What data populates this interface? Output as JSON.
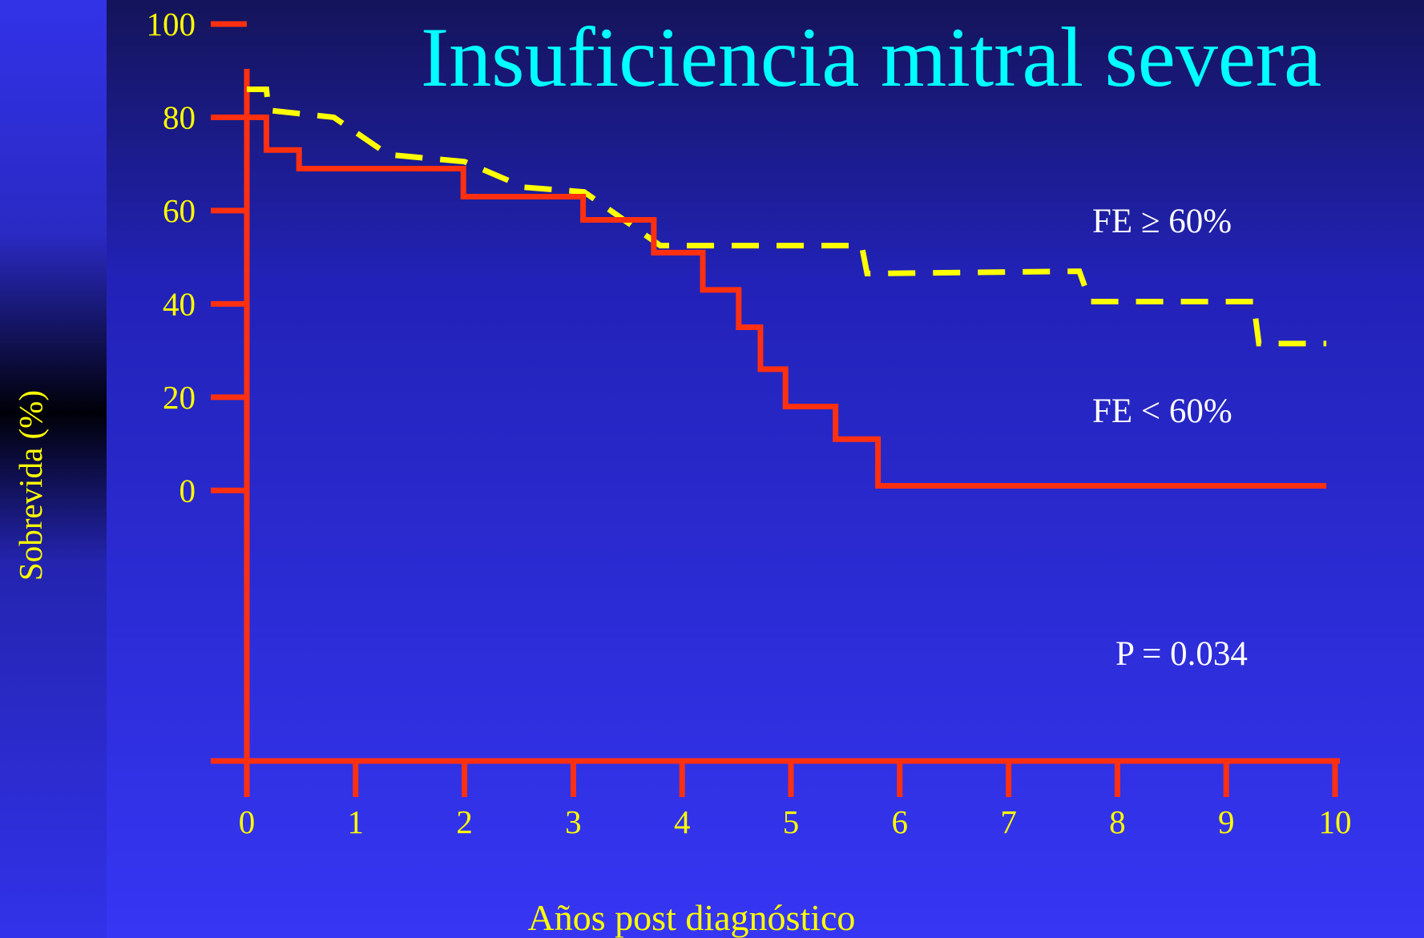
{
  "chart_data": {
    "type": "line",
    "title": "Insuficiencia mitral severa",
    "ylabel": "Sobrevida (%)",
    "xlabel": "Años post diagnóstico",
    "annotation": "P = 0.034",
    "xlim": [
      0,
      10
    ],
    "xticks": [
      0,
      1,
      2,
      3,
      4,
      5,
      6,
      7,
      8,
      9,
      10
    ],
    "ylim": [
      -58,
      100
    ],
    "yticks": [
      0,
      20,
      40,
      60,
      80,
      100
    ],
    "series": [
      {
        "name": "FE ≥ 60%",
        "color": "#ffff00",
        "linestyle": "dashed",
        "drawstyle": "default",
        "x": [
          0,
          0.18,
          0.2,
          0.8,
          1.3,
          2.0,
          2.55,
          3.1,
          3.8,
          5.65,
          5.7,
          7.65,
          7.75,
          9.25,
          9.3,
          9.92
        ],
        "values": [
          86,
          86,
          81.5,
          80,
          72,
          70.5,
          65,
          64,
          52.5,
          52.5,
          46.5,
          47,
          40.5,
          40.5,
          31.5,
          31.5
        ]
      },
      {
        "name": "FE < 60%",
        "color": "#ff3010",
        "linestyle": "solid",
        "drawstyle": "steps-post",
        "x": [
          0,
          0.18,
          0.48,
          1.99,
          3.09,
          3.74,
          4.19,
          4.52,
          4.72,
          4.95,
          5.41,
          5.8,
          9.92
        ],
        "values": [
          80,
          73,
          69,
          63,
          58,
          51,
          43,
          35,
          26,
          18,
          11,
          1,
          1
        ]
      }
    ]
  }
}
